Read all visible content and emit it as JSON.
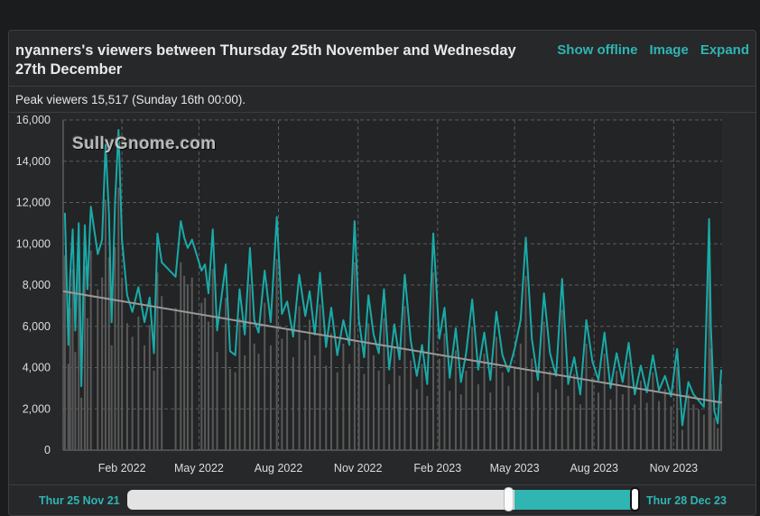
{
  "header": {
    "title": "nyanners's viewers between Thursday 25th November and Wednesday 27th December",
    "actions": [
      "Show offline",
      "Image",
      "Expand"
    ]
  },
  "peak_text": "Peak viewers 15,517 (Sunday 16th 00:00).",
  "watermark": "SullyGnome.com",
  "navigator": {
    "start_label": "Thur 25 Nov 21",
    "end_label": "Thur 28 Dec 23",
    "selection_start_fraction": 0.76,
    "selection_end_fraction": 1.0
  },
  "colors": {
    "series": "#19aaa8",
    "trend": "#9a9a9a",
    "bars": "#595959",
    "grid": "#5a5d60",
    "axis_text": "#dcdcdc",
    "accent": "#2fb5b2"
  },
  "chart_data": {
    "type": "line",
    "x_range": [
      "2021-11-25",
      "2023-12-27"
    ],
    "ylim": [
      0,
      16000
    ],
    "y_ticks": [
      0,
      2000,
      4000,
      6000,
      8000,
      10000,
      12000,
      14000,
      16000
    ],
    "y_tick_labels": [
      "0",
      "2,000",
      "4,000",
      "6,000",
      "8,000",
      "10,000",
      "12,000",
      "14,000",
      "16,000"
    ],
    "x_ticks": [
      "2022-02-01",
      "2022-05-01",
      "2022-08-01",
      "2022-11-01",
      "2023-02-01",
      "2023-05-01",
      "2023-08-01",
      "2023-11-01"
    ],
    "x_tick_labels": [
      "Feb 2022",
      "May 2022",
      "Aug 2022",
      "Nov 2022",
      "Feb 2023",
      "May 2023",
      "Aug 2023",
      "Nov 2023"
    ],
    "grid": true,
    "peak": {
      "value": 15517
    },
    "trend": {
      "start": [
        "2021-11-25",
        7700
      ],
      "end": [
        "2023-12-27",
        2300
      ]
    },
    "series": [
      {
        "values": [
          [
            "2021-11-27",
            11500
          ],
          [
            "2021-12-01",
            5100
          ],
          [
            "2021-12-03",
            8400
          ],
          [
            "2021-12-06",
            10700
          ],
          [
            "2021-12-09",
            5800
          ],
          [
            "2021-12-13",
            11000
          ],
          [
            "2021-12-16",
            3100
          ],
          [
            "2021-12-20",
            10900
          ],
          [
            "2021-12-23",
            7800
          ],
          [
            "2021-12-27",
            11800
          ],
          [
            "2022-01-04",
            9500
          ],
          [
            "2022-01-09",
            10200
          ],
          [
            "2022-01-13",
            14800
          ],
          [
            "2022-01-17",
            11400
          ],
          [
            "2022-01-20",
            6200
          ],
          [
            "2022-01-24",
            12000
          ],
          [
            "2022-01-28",
            15517
          ],
          [
            "2022-02-01",
            10200
          ],
          [
            "2022-02-07",
            7500
          ],
          [
            "2022-02-13",
            6700
          ],
          [
            "2022-02-20",
            7900
          ],
          [
            "2022-02-27",
            6200
          ],
          [
            "2022-03-05",
            7400
          ],
          [
            "2022-03-10",
            4700
          ],
          [
            "2022-03-14",
            10500
          ],
          [
            "2022-03-19",
            9100
          ],
          [
            "2022-04-04",
            8400
          ],
          [
            "2022-04-10",
            11100
          ],
          [
            "2022-04-14",
            10300
          ],
          [
            "2022-04-18",
            9800
          ],
          [
            "2022-04-23",
            10200
          ],
          [
            "2022-05-04",
            8700
          ],
          [
            "2022-05-08",
            9000
          ],
          [
            "2022-05-12",
            7600
          ],
          [
            "2022-05-17",
            10700
          ],
          [
            "2022-05-22",
            5800
          ],
          [
            "2022-06-01",
            9000
          ],
          [
            "2022-06-06",
            4800
          ],
          [
            "2022-06-12",
            4600
          ],
          [
            "2022-06-17",
            7800
          ],
          [
            "2022-06-23",
            5600
          ],
          [
            "2022-06-29",
            9800
          ],
          [
            "2022-07-04",
            6300
          ],
          [
            "2022-07-09",
            5700
          ],
          [
            "2022-07-16",
            8700
          ],
          [
            "2022-07-23",
            6200
          ],
          [
            "2022-07-30",
            11300
          ],
          [
            "2022-08-05",
            6600
          ],
          [
            "2022-08-11",
            7200
          ],
          [
            "2022-08-18",
            5500
          ],
          [
            "2022-08-25",
            8500
          ],
          [
            "2022-09-01",
            6500
          ],
          [
            "2022-09-06",
            7700
          ],
          [
            "2022-09-12",
            5600
          ],
          [
            "2022-09-18",
            8600
          ],
          [
            "2022-09-25",
            5000
          ],
          [
            "2022-10-01",
            6900
          ],
          [
            "2022-10-08",
            4600
          ],
          [
            "2022-10-15",
            6300
          ],
          [
            "2022-10-22",
            5100
          ],
          [
            "2022-10-28",
            11100
          ],
          [
            "2022-11-02",
            6300
          ],
          [
            "2022-11-08",
            4500
          ],
          [
            "2022-11-13",
            7500
          ],
          [
            "2022-11-19",
            5600
          ],
          [
            "2022-11-25",
            4700
          ],
          [
            "2022-12-01",
            7800
          ],
          [
            "2022-12-07",
            3900
          ],
          [
            "2022-12-13",
            6100
          ],
          [
            "2022-12-19",
            4400
          ],
          [
            "2022-12-25",
            8500
          ],
          [
            "2023-01-01",
            5300
          ],
          [
            "2023-01-08",
            3600
          ],
          [
            "2023-01-14",
            5100
          ],
          [
            "2023-01-20",
            3200
          ],
          [
            "2023-01-27",
            10500
          ],
          [
            "2023-02-03",
            5400
          ],
          [
            "2023-02-09",
            6900
          ],
          [
            "2023-02-15",
            3500
          ],
          [
            "2023-02-22",
            5900
          ],
          [
            "2023-02-28",
            3300
          ],
          [
            "2023-03-06",
            4700
          ],
          [
            "2023-03-13",
            7300
          ],
          [
            "2023-03-20",
            3900
          ],
          [
            "2023-03-27",
            5700
          ],
          [
            "2023-04-03",
            3400
          ],
          [
            "2023-04-10",
            6700
          ],
          [
            "2023-04-17",
            4600
          ],
          [
            "2023-04-24",
            3800
          ],
          [
            "2023-05-01",
            4900
          ],
          [
            "2023-05-08",
            6300
          ],
          [
            "2023-05-14",
            10300
          ],
          [
            "2023-05-21",
            5400
          ],
          [
            "2023-05-28",
            3400
          ],
          [
            "2023-06-04",
            7600
          ],
          [
            "2023-06-11",
            4700
          ],
          [
            "2023-06-18",
            3600
          ],
          [
            "2023-06-25",
            8300
          ],
          [
            "2023-07-02",
            3200
          ],
          [
            "2023-07-09",
            4500
          ],
          [
            "2023-07-16",
            2700
          ],
          [
            "2023-07-23",
            6300
          ],
          [
            "2023-07-30",
            4300
          ],
          [
            "2023-08-06",
            3400
          ],
          [
            "2023-08-13",
            5700
          ],
          [
            "2023-08-20",
            3000
          ],
          [
            "2023-08-27",
            4700
          ],
          [
            "2023-09-03",
            3300
          ],
          [
            "2023-09-10",
            5200
          ],
          [
            "2023-09-17",
            2700
          ],
          [
            "2023-09-24",
            4100
          ],
          [
            "2023-10-01",
            2800
          ],
          [
            "2023-10-08",
            4600
          ],
          [
            "2023-10-15",
            2900
          ],
          [
            "2023-10-22",
            3600
          ],
          [
            "2023-10-29",
            2600
          ],
          [
            "2023-11-05",
            4900
          ],
          [
            "2023-11-11",
            1200
          ],
          [
            "2023-11-18",
            3300
          ],
          [
            "2023-11-24",
            2700
          ],
          [
            "2023-11-30",
            2400
          ],
          [
            "2023-12-06",
            2100
          ],
          [
            "2023-12-12",
            11200
          ],
          [
            "2023-12-14",
            6000
          ],
          [
            "2023-12-18",
            1900
          ],
          [
            "2023-12-22",
            1300
          ],
          [
            "2023-12-26",
            3900
          ]
        ]
      }
    ]
  }
}
